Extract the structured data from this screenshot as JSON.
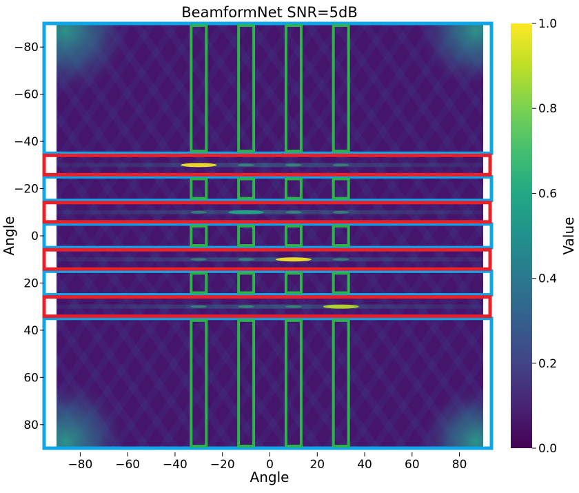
{
  "chart_data": {
    "type": "heatmap",
    "title": "BeamformNet SNR=5dB",
    "xlabel": "Angle",
    "ylabel": "Angle",
    "xlim": [
      -90,
      90
    ],
    "ylim": [
      90,
      -90
    ],
    "x_ticks": [
      "−80",
      "−60",
      "−40",
      "−20",
      "0",
      "20",
      "40",
      "60",
      "80"
    ],
    "x_tick_values": [
      -80,
      -60,
      -40,
      -20,
      0,
      20,
      40,
      60,
      80
    ],
    "y_ticks": [
      "−80",
      "−60",
      "−40",
      "−20",
      "0",
      "20",
      "40",
      "60",
      "80"
    ],
    "y_tick_values": [
      -80,
      -60,
      -40,
      -20,
      0,
      20,
      40,
      60,
      80
    ],
    "colorbar": {
      "label": "Value",
      "range": [
        0.0,
        1.0
      ],
      "colormap": "viridis",
      "ticks": [
        "0.0",
        "0.2",
        "0.4",
        "0.6",
        "0.8",
        "1.0"
      ],
      "tick_values": [
        0,
        0.2,
        0.4,
        0.6,
        0.8,
        1.0
      ]
    },
    "peaks": [
      {
        "x": -30,
        "y": -30,
        "value": 0.95
      },
      {
        "x": -10,
        "y": -10,
        "value": 0.6
      },
      {
        "x": 10,
        "y": 10,
        "value": 1.0
      },
      {
        "x": 30,
        "y": 30,
        "value": 0.85
      }
    ],
    "source_angles": [
      -30,
      -10,
      10,
      30
    ],
    "annotations": {
      "red_rows": [
        -30,
        -10,
        10,
        30
      ],
      "green_columns": [
        -30,
        -10,
        10,
        30
      ],
      "blue_regions": [
        [
          -90,
          -35
        ],
        [
          -25,
          -15
        ],
        [
          -5,
          5
        ],
        [
          15,
          25
        ],
        [
          35,
          90
        ]
      ],
      "colors": {
        "red": "#e8202a",
        "green": "#2db34a",
        "blue": "#0ea5e9"
      }
    }
  }
}
